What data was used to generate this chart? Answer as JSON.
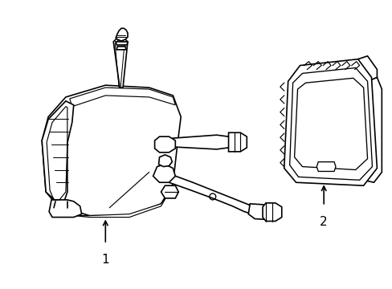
{
  "background_color": "#ffffff",
  "line_color": "#000000",
  "line_width": 1.2,
  "fig_width": 4.89,
  "fig_height": 3.6,
  "dpi": 100,
  "label1": "1",
  "label2": "2"
}
